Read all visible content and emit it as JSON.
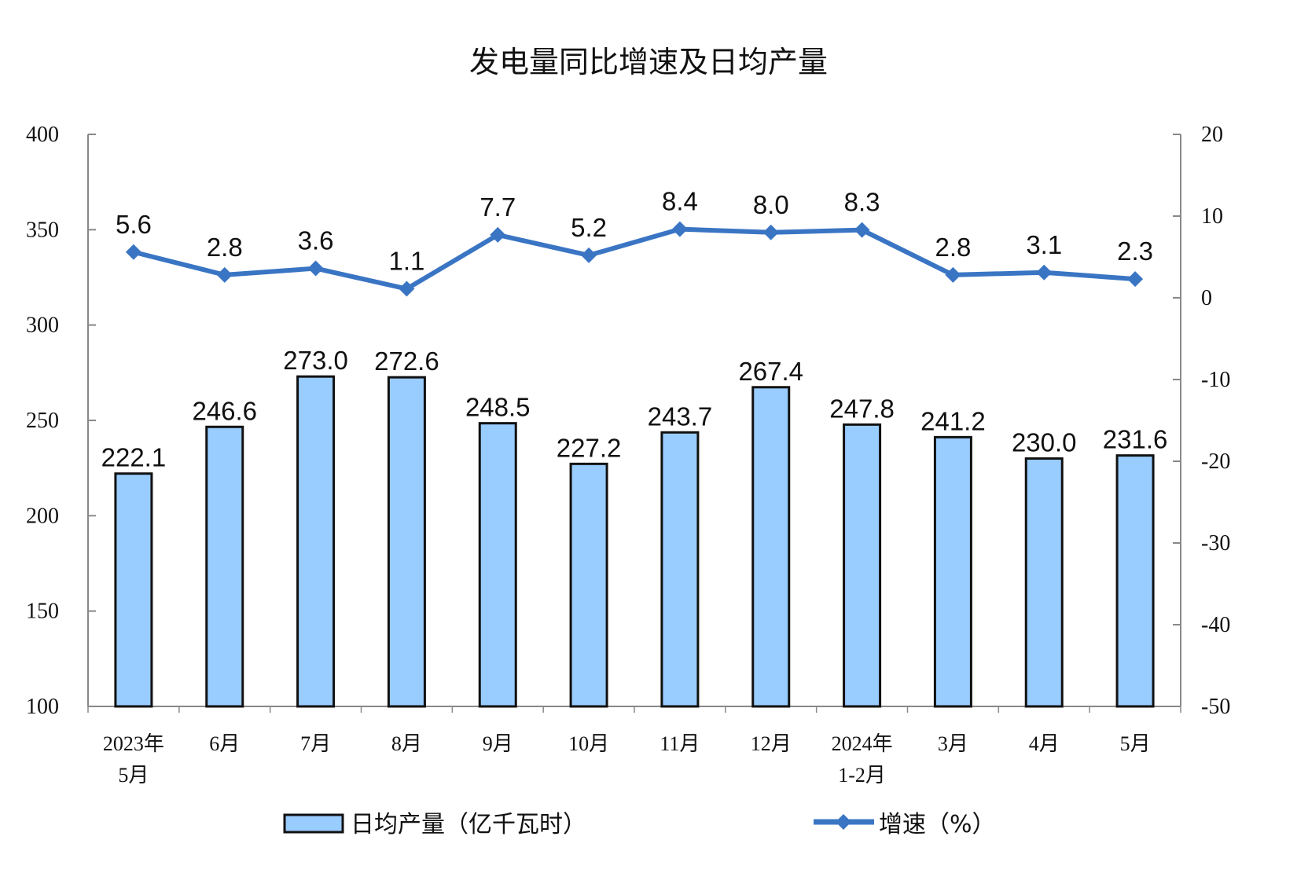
{
  "chart_data": {
    "type": "bar+line",
    "title": "发电量同比增速及日均产量",
    "categories": [
      "2023年\n5月",
      "6月",
      "7月",
      "8月",
      "9月",
      "10月",
      "11月",
      "12月",
      "2024年\n1-2月",
      "3月",
      "4月",
      "5月"
    ],
    "series": [
      {
        "name": "日均产量（亿千瓦时）",
        "type": "bar",
        "axis": "left",
        "color": "#99CCFF",
        "values": [
          222.1,
          246.6,
          273.0,
          272.6,
          248.5,
          227.2,
          243.7,
          267.4,
          247.8,
          241.2,
          230.0,
          231.6
        ]
      },
      {
        "name": "增速（%）",
        "type": "line",
        "axis": "right",
        "color": "#3A75C4",
        "marker": "diamond",
        "values": [
          5.6,
          2.8,
          3.6,
          1.1,
          7.7,
          5.2,
          8.4,
          8.0,
          8.3,
          2.8,
          3.1,
          2.3
        ]
      }
    ],
    "left_axis": {
      "range": [
        100,
        400
      ],
      "ticks": [
        100,
        150,
        200,
        250,
        300,
        350,
        400
      ]
    },
    "right_axis": {
      "range": [
        -50,
        20
      ],
      "ticks": [
        -50,
        -40,
        -30,
        -20,
        -10,
        0,
        10,
        20
      ]
    },
    "grid": false,
    "legend_position": "bottom"
  }
}
